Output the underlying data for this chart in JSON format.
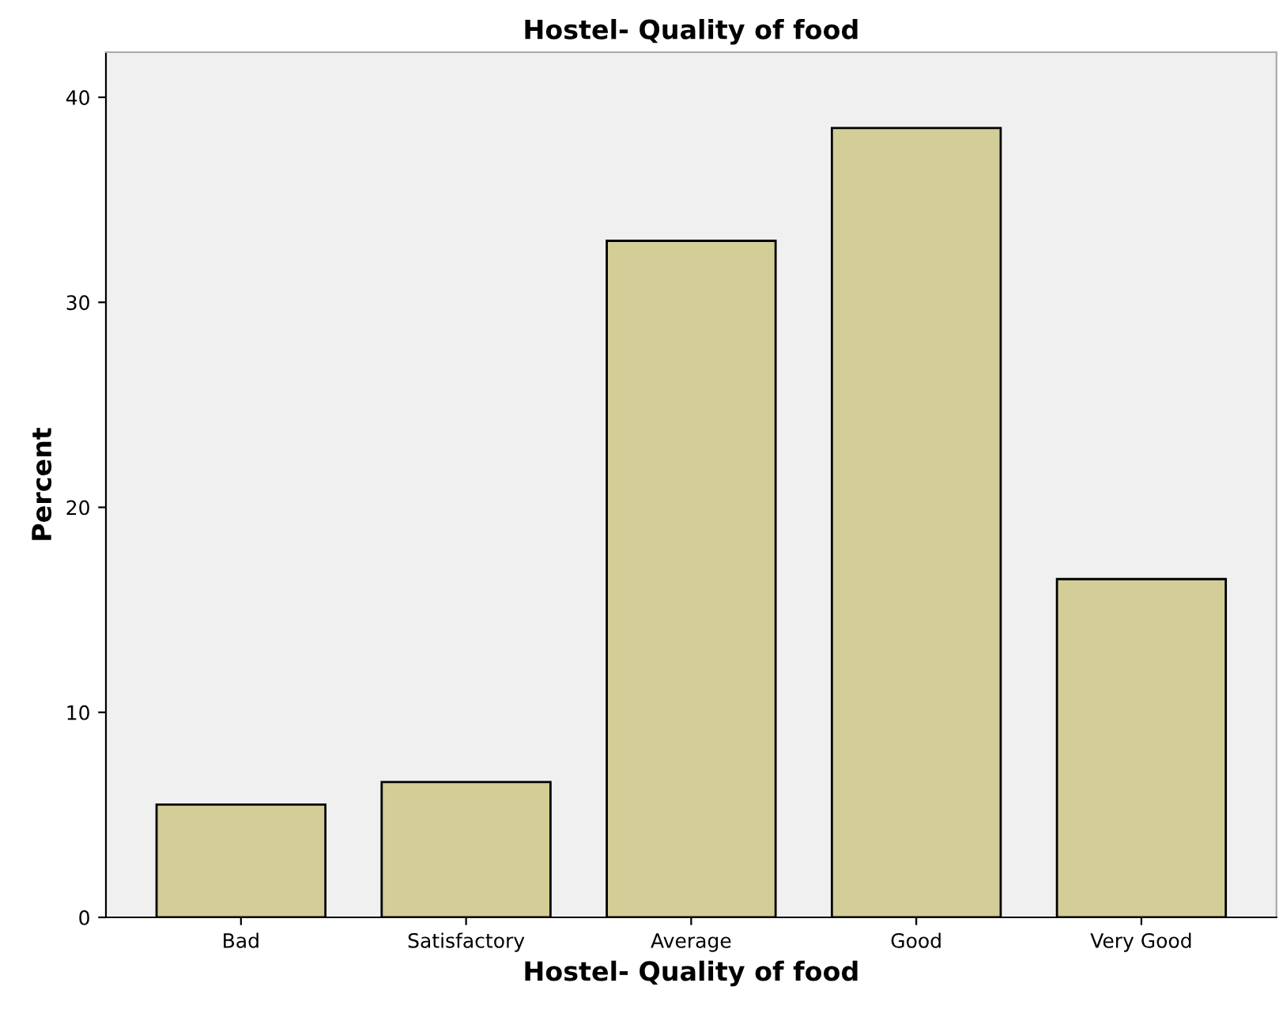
{
  "chart_data": {
    "type": "bar",
    "title": "Hostel- Quality of food",
    "xlabel": "Hostel- Quality of food",
    "ylabel": "Percent",
    "categories": [
      "Bad",
      "Satisfactory",
      "Average",
      "Good",
      "Very Good"
    ],
    "values": [
      5.5,
      6.6,
      33.0,
      38.5,
      16.5
    ],
    "color": "#d3ce97",
    "ylim": [
      0,
      42.2
    ],
    "yticks": [
      0,
      10,
      20,
      30,
      40
    ],
    "grid": false,
    "legend": false
  }
}
